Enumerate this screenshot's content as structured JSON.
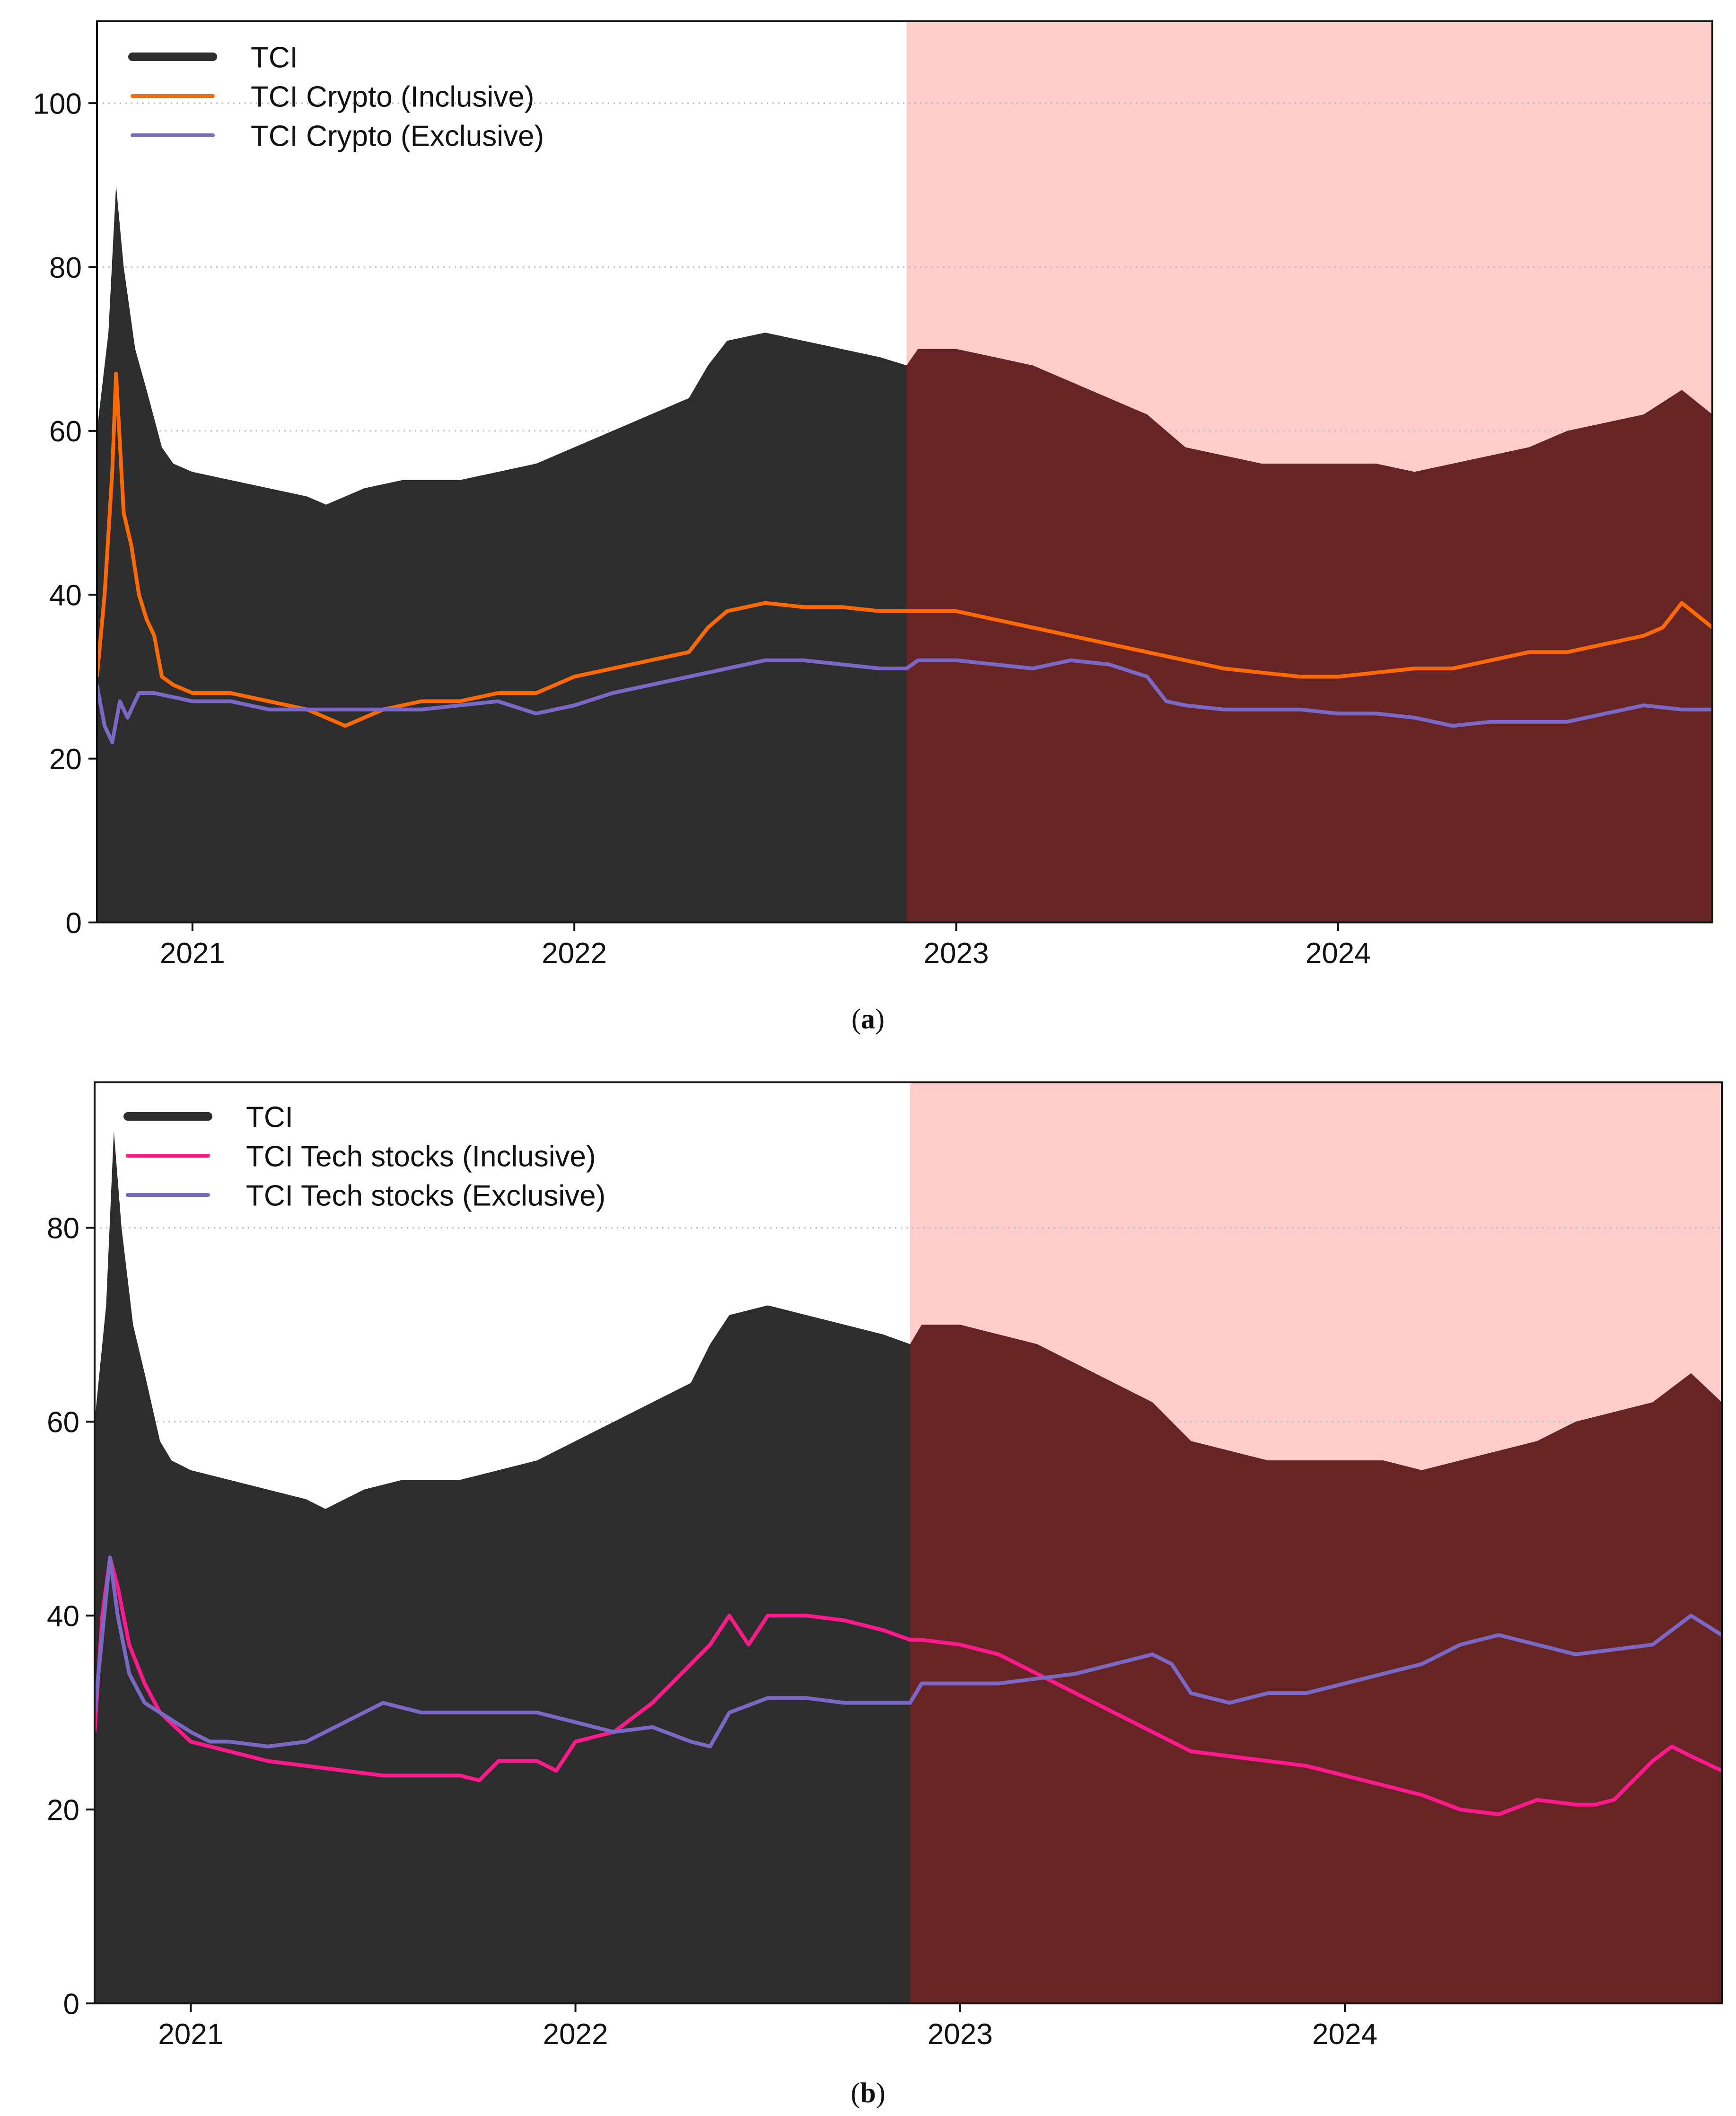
{
  "figure": {
    "caption_a": "a",
    "caption_b": "b"
  },
  "colors": {
    "tci": "#2d2d2d",
    "crypto_inclusive": "#ff6a00",
    "tech_inclusive": "#ff1a8c",
    "exclusive": "#7b68c4",
    "shade": "#ffcccc",
    "overlap": "#662424"
  },
  "chart_data": [
    {
      "type": "area",
      "panel": "a",
      "title": "",
      "xlabel": "",
      "ylabel": "",
      "xlim": [
        2020.75,
        2024.98
      ],
      "ylim": [
        0,
        110
      ],
      "xticks": [
        2021,
        2022,
        2023,
        2024
      ],
      "xtick_labels": [
        "2021",
        "2022",
        "2023",
        "2024"
      ],
      "yticks": [
        0,
        20,
        40,
        60,
        80,
        100
      ],
      "ytick_labels": [
        "0",
        "20",
        "40",
        "60",
        "80",
        "100"
      ],
      "grid": "horizontal dotted",
      "legend_position": "top-left",
      "shaded_region": {
        "x_start": 2022.87,
        "x_end": 2024.98
      },
      "series": [
        {
          "name": "TCI",
          "style": "filled-area",
          "color": "#2d2d2d",
          "x": [
            2020.75,
            2020.78,
            2020.8,
            2020.82,
            2020.85,
            2020.88,
            2020.92,
            2020.95,
            2021.0,
            2021.1,
            2021.2,
            2021.3,
            2021.35,
            2021.45,
            2021.55,
            2021.7,
            2021.8,
            2021.9,
            2022.0,
            2022.1,
            2022.2,
            2022.3,
            2022.35,
            2022.4,
            2022.5,
            2022.6,
            2022.7,
            2022.8,
            2022.87,
            2022.9,
            2023.0,
            2023.1,
            2023.2,
            2023.3,
            2023.4,
            2023.5,
            2023.6,
            2023.7,
            2023.8,
            2023.9,
            2024.0,
            2024.1,
            2024.2,
            2024.3,
            2024.4,
            2024.5,
            2024.6,
            2024.7,
            2024.8,
            2024.9,
            2024.98
          ],
          "values": [
            60,
            72,
            90,
            80,
            70,
            65,
            58,
            56,
            55,
            54,
            53,
            52,
            51,
            53,
            54,
            54,
            55,
            56,
            58,
            60,
            62,
            64,
            68,
            71,
            72,
            71,
            70,
            69,
            68,
            70,
            70,
            69,
            68,
            66,
            64,
            62,
            58,
            57,
            56,
            56,
            56,
            56,
            55,
            56,
            57,
            58,
            60,
            61,
            62,
            65,
            62
          ]
        },
        {
          "name": "TCI Crypto (Inclusive)",
          "style": "line",
          "color": "#ff6a00",
          "x": [
            2020.75,
            2020.77,
            2020.79,
            2020.8,
            2020.82,
            2020.84,
            2020.86,
            2020.88,
            2020.9,
            2020.92,
            2020.95,
            2021.0,
            2021.1,
            2021.2,
            2021.3,
            2021.35,
            2021.4,
            2021.5,
            2021.6,
            2021.7,
            2021.8,
            2021.9,
            2021.95,
            2022.0,
            2022.1,
            2022.2,
            2022.3,
            2022.35,
            2022.4,
            2022.5,
            2022.6,
            2022.7,
            2022.8,
            2022.87,
            2022.9,
            2023.0,
            2023.1,
            2023.2,
            2023.3,
            2023.4,
            2023.5,
            2023.6,
            2023.7,
            2023.8,
            2023.9,
            2024.0,
            2024.1,
            2024.2,
            2024.3,
            2024.4,
            2024.5,
            2024.6,
            2024.7,
            2024.8,
            2024.85,
            2024.9,
            2024.98
          ],
          "values": [
            30,
            40,
            55,
            67,
            50,
            46,
            40,
            37,
            35,
            30,
            29,
            28,
            28,
            27,
            26,
            25,
            24,
            26,
            27,
            27,
            28,
            28,
            29,
            30,
            31,
            32,
            33,
            36,
            38,
            39,
            38.5,
            38.5,
            38,
            38,
            38,
            38,
            37,
            36,
            35,
            34,
            33,
            32,
            31,
            30.5,
            30,
            30,
            30.5,
            31,
            31,
            32,
            33,
            33,
            34,
            35,
            36,
            39,
            36
          ]
        },
        {
          "name": "TCI Crypto (Exclusive)",
          "style": "line",
          "color": "#7b68c4",
          "x": [
            2020.75,
            2020.77,
            2020.79,
            2020.81,
            2020.83,
            2020.86,
            2020.9,
            2021.0,
            2021.1,
            2021.2,
            2021.3,
            2021.4,
            2021.5,
            2021.6,
            2021.7,
            2021.8,
            2021.9,
            2022.0,
            2022.1,
            2022.2,
            2022.3,
            2022.4,
            2022.5,
            2022.6,
            2022.7,
            2022.8,
            2022.87,
            2022.9,
            2023.0,
            2023.1,
            2023.2,
            2023.3,
            2023.4,
            2023.5,
            2023.55,
            2023.6,
            2023.7,
            2023.8,
            2023.9,
            2024.0,
            2024.1,
            2024.2,
            2024.3,
            2024.4,
            2024.5,
            2024.6,
            2024.7,
            2024.8,
            2024.9,
            2024.98
          ],
          "values": [
            29,
            24,
            22,
            27,
            25,
            28,
            28,
            27,
            27,
            26,
            26,
            26,
            26,
            26,
            26.5,
            27,
            25.5,
            26.5,
            28,
            29,
            30,
            31,
            32,
            32,
            31.5,
            31,
            31,
            32,
            32,
            31.5,
            31,
            32,
            31.5,
            30,
            27,
            26.5,
            26,
            26,
            26,
            25.5,
            25.5,
            25,
            24,
            24.5,
            24.5,
            24.5,
            25.5,
            26.5,
            26,
            26
          ]
        }
      ]
    },
    {
      "type": "area",
      "panel": "b",
      "title": "",
      "xlabel": "",
      "ylabel": "",
      "xlim": [
        2020.75,
        2024.98
      ],
      "ylim": [
        0,
        95
      ],
      "xticks": [
        2021,
        2022,
        2023,
        2024
      ],
      "xtick_labels": [
        "2021",
        "2022",
        "2023",
        "2024"
      ],
      "yticks": [
        0,
        20,
        40,
        60,
        80
      ],
      "ytick_labels": [
        "0",
        "20",
        "40",
        "60",
        "80"
      ],
      "grid": "horizontal dotted",
      "legend_position": "top-left",
      "shaded_region": {
        "x_start": 2022.87,
        "x_end": 2024.98
      },
      "series": [
        {
          "name": "TCI",
          "style": "filled-area",
          "color": "#2d2d2d",
          "x": [
            2020.75,
            2020.78,
            2020.8,
            2020.82,
            2020.85,
            2020.88,
            2020.92,
            2020.95,
            2021.0,
            2021.1,
            2021.2,
            2021.3,
            2021.35,
            2021.45,
            2021.55,
            2021.7,
            2021.8,
            2021.9,
            2022.0,
            2022.1,
            2022.2,
            2022.3,
            2022.35,
            2022.4,
            2022.5,
            2022.6,
            2022.7,
            2022.8,
            2022.87,
            2022.9,
            2023.0,
            2023.1,
            2023.2,
            2023.3,
            2023.4,
            2023.5,
            2023.6,
            2023.7,
            2023.8,
            2023.9,
            2024.0,
            2024.1,
            2024.2,
            2024.3,
            2024.4,
            2024.5,
            2024.6,
            2024.7,
            2024.8,
            2024.9,
            2024.98
          ],
          "values": [
            60,
            72,
            90,
            80,
            70,
            65,
            58,
            56,
            55,
            54,
            53,
            52,
            51,
            53,
            54,
            54,
            55,
            56,
            58,
            60,
            62,
            64,
            68,
            71,
            72,
            71,
            70,
            69,
            68,
            70,
            70,
            69,
            68,
            66,
            64,
            62,
            58,
            57,
            56,
            56,
            56,
            56,
            55,
            56,
            57,
            58,
            60,
            61,
            62,
            65,
            62
          ]
        },
        {
          "name": "TCI Tech stocks (Inclusive)",
          "style": "line",
          "color": "#ff1a8c",
          "x": [
            2020.75,
            2020.77,
            2020.79,
            2020.81,
            2020.84,
            2020.88,
            2020.92,
            2021.0,
            2021.1,
            2021.2,
            2021.3,
            2021.4,
            2021.5,
            2021.6,
            2021.7,
            2021.75,
            2021.8,
            2021.9,
            2021.95,
            2022.0,
            2022.1,
            2022.2,
            2022.3,
            2022.35,
            2022.4,
            2022.45,
            2022.5,
            2022.6,
            2022.7,
            2022.8,
            2022.87,
            2022.9,
            2023.0,
            2023.1,
            2023.2,
            2023.3,
            2023.4,
            2023.5,
            2023.6,
            2023.7,
            2023.8,
            2023.9,
            2024.0,
            2024.1,
            2024.2,
            2024.3,
            2024.4,
            2024.5,
            2024.6,
            2024.65,
            2024.7,
            2024.8,
            2024.85,
            2024.9,
            2024.98
          ],
          "values": [
            28,
            40,
            46,
            43,
            37,
            33,
            30,
            27,
            26,
            25,
            24.5,
            24,
            23.5,
            23.5,
            23.5,
            23,
            25,
            25,
            24,
            27,
            28,
            31,
            35,
            37,
            40,
            37,
            40,
            40,
            39.5,
            38.5,
            37.5,
            37.5,
            37,
            36,
            34,
            32,
            30,
            28,
            26,
            25.5,
            25,
            24.5,
            23.5,
            22.5,
            21.5,
            20,
            19.5,
            21,
            20.5,
            20.5,
            21,
            25,
            26.5,
            25.5,
            24
          ]
        },
        {
          "name": "TCI Tech stocks (Exclusive)",
          "style": "line",
          "color": "#7b68c4",
          "x": [
            2020.75,
            2020.77,
            2020.79,
            2020.81,
            2020.84,
            2020.88,
            2020.92,
            2021.0,
            2021.05,
            2021.1,
            2021.2,
            2021.3,
            2021.35,
            2021.4,
            2021.5,
            2021.6,
            2021.7,
            2021.8,
            2021.9,
            2022.0,
            2022.1,
            2022.2,
            2022.3,
            2022.35,
            2022.4,
            2022.5,
            2022.6,
            2022.7,
            2022.8,
            2022.87,
            2022.9,
            2023.0,
            2023.1,
            2023.2,
            2023.3,
            2023.4,
            2023.5,
            2023.55,
            2023.6,
            2023.7,
            2023.8,
            2023.9,
            2024.0,
            2024.1,
            2024.2,
            2024.3,
            2024.4,
            2024.5,
            2024.6,
            2024.7,
            2024.8,
            2024.9,
            2024.98
          ],
          "values": [
            30,
            38,
            46,
            40,
            34,
            31,
            30,
            28,
            27,
            27,
            26.5,
            27,
            28,
            29,
            31,
            30,
            30,
            30,
            30,
            29,
            28,
            28.5,
            27,
            26.5,
            30,
            31.5,
            31.5,
            31,
            31,
            31,
            33,
            33,
            33,
            33.5,
            34,
            35,
            36,
            35,
            32,
            31,
            32,
            32,
            33,
            34,
            35,
            37,
            38,
            37,
            36,
            36.5,
            37,
            40,
            38
          ]
        }
      ]
    }
  ]
}
